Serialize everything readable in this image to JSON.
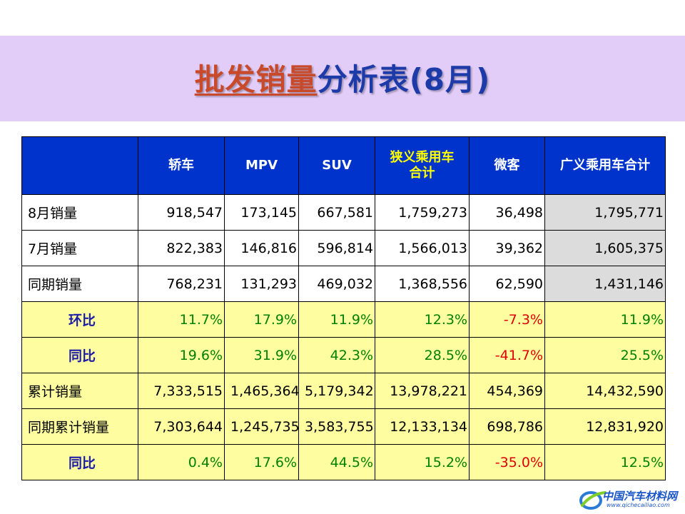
{
  "title": {
    "highlight": "批发销量",
    "rest": "分析表(8月)"
  },
  "table": {
    "columns": [
      {
        "label": "",
        "label2": ""
      },
      {
        "label": "轿车",
        "label2": ""
      },
      {
        "label": "MPV",
        "label2": ""
      },
      {
        "label": "SUV",
        "label2": ""
      },
      {
        "label": "狭义乘用车",
        "label2": "合计"
      },
      {
        "label": "微客",
        "label2": ""
      },
      {
        "label": "广义乘用车合计",
        "label2": ""
      }
    ],
    "rows": [
      {
        "label": "8月销量",
        "values": [
          "918,547",
          "173,145",
          "667,581",
          "1,759,273",
          "36,498",
          "1,795,771"
        ]
      },
      {
        "label": "7月销量",
        "values": [
          "822,383",
          "146,816",
          "596,814",
          "1,566,013",
          "39,362",
          "1,605,375"
        ]
      },
      {
        "label": "同期销量",
        "values": [
          "768,231",
          "131,293",
          "469,032",
          "1,368,556",
          "62,590",
          "1,431,146"
        ]
      },
      {
        "label": "环比",
        "values": [
          "11.7%",
          "17.9%",
          "11.9%",
          "12.3%",
          "-7.3%",
          "11.9%"
        ]
      },
      {
        "label": "同比",
        "values": [
          "19.6%",
          "31.9%",
          "42.3%",
          "28.5%",
          "-41.7%",
          "25.5%"
        ]
      },
      {
        "label": "累计销量",
        "values": [
          "7,333,515",
          "1,465,364",
          "5,179,342",
          "13,978,221",
          "454,369",
          "14,432,590"
        ]
      },
      {
        "label": "同期累计销量",
        "values": [
          "7,303,644",
          "1,245,735",
          "3,583,755",
          "12,133,134",
          "698,786",
          "12,831,920"
        ]
      },
      {
        "label": "同比",
        "values": [
          "0.4%",
          "17.6%",
          "44.5%",
          "15.2%",
          "-35.0%",
          "12.5%"
        ]
      }
    ]
  },
  "logo": {
    "name": "中国汽车材料网",
    "url": "www.qichecailiao.com"
  },
  "colors": {
    "header_bg": "#0033cc",
    "title_band": "#e2cdf8",
    "ratio_row_bg": "#fefea0",
    "positive": "#008000",
    "negative": "#e00000",
    "total_column_gray": "#dcdcdc"
  }
}
